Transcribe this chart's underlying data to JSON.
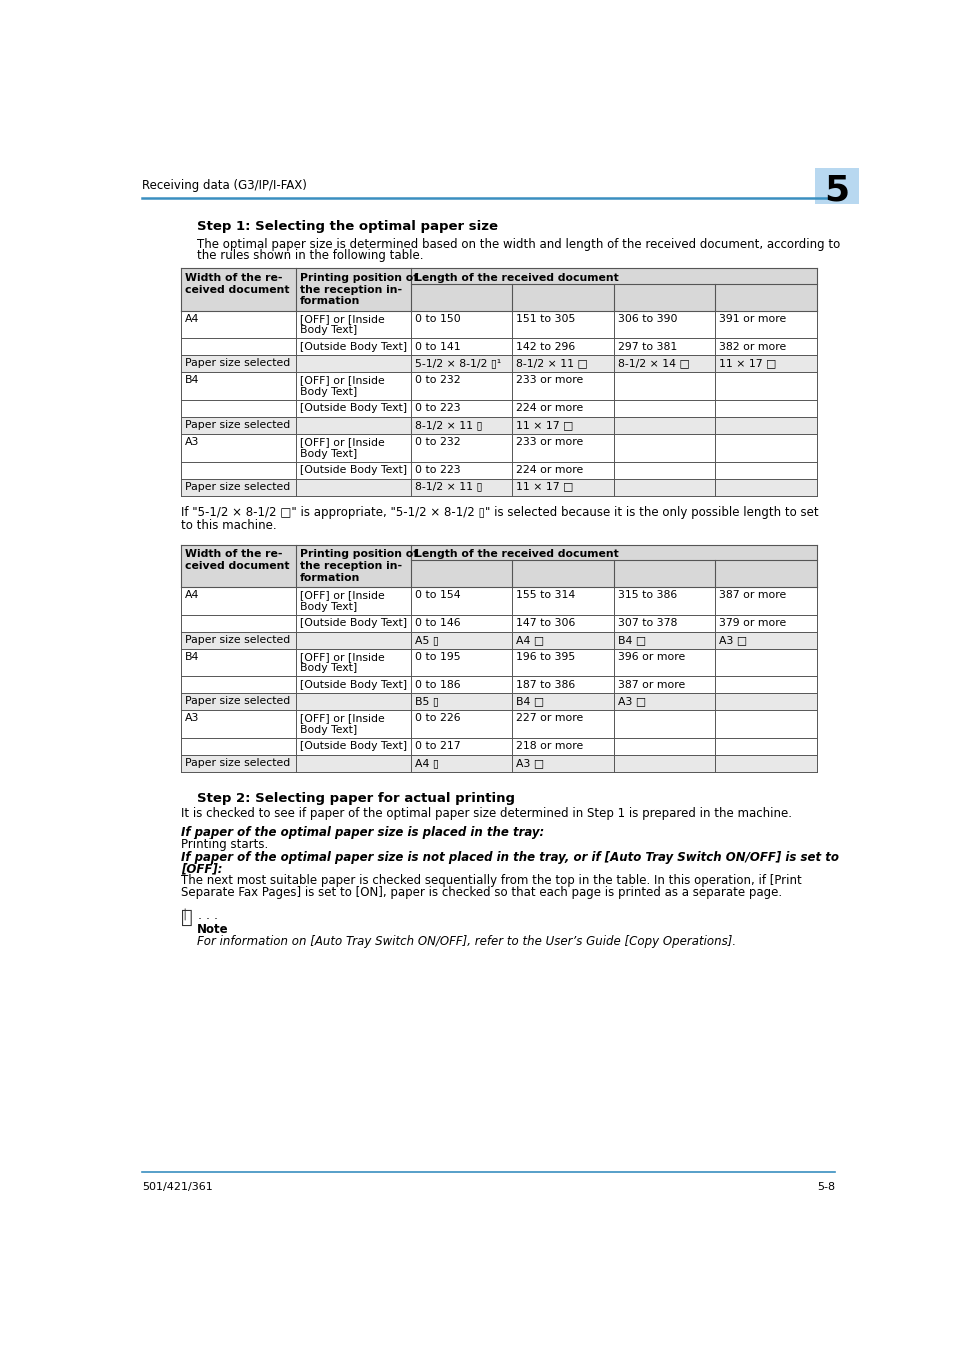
{
  "page_header": "Receiving data (G3/IP/I-FAX)",
  "page_number_tab": "5",
  "page_footer_left": "501/421/361",
  "page_footer_right": "5-8",
  "header_line_color": "#3a8fc0",
  "tab_bg_color": "#b8d8f0",
  "bg_color": "#ffffff",
  "section1_title": "Step 1: Selecting the optimal paper size",
  "section1_intro": "The optimal paper size is determined based on the width and length of the received document, according to\nthe rules shown in the following table.",
  "note_between": "If \"5-1/2 × 8-1/2 □\" is appropriate, \"5-1/2 × 8-1/2 ▯\" is selected because it is the only possible length to set\nto this machine.",
  "section2_title": "Step 2: Selecting paper for actual printing",
  "section2_intro": "It is checked to see if paper of the optimal paper size determined in Step 1 is prepared in the machine.",
  "section2_bold1": "If paper of the optimal paper size is placed in the tray:",
  "section2_text1": "Printing starts.",
  "section2_bold2": "If paper of the optimal paper size is not placed in the tray, or if [Auto Tray Switch ON/OFF] is set to\n[OFF]:",
  "section2_text2": "The next most suitable paper is checked sequentially from the top in the table. In this operation, if [Print\nSeparate Fax Pages] is set to [ON], paper is checked so that each page is printed as a separate page.",
  "note_label": "Note",
  "note_text": "For information on [Auto Tray Switch ON/OFF], refer to the User’s Guide [Copy Operations].",
  "table_header_bg": "#d8d8d8",
  "table_border_color": "#555555",
  "table_font_size": 7.8,
  "body_font_size": 8.5,
  "title_font_size": 9.5,
  "header_font_size": 8.5,
  "footer_font_size": 8.0
}
